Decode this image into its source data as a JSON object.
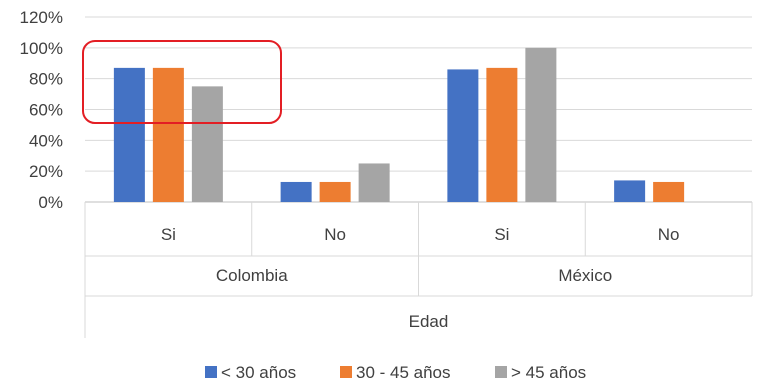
{
  "chart_data": {
    "type": "bar",
    "ylim": [
      0,
      120
    ],
    "y_ticks": [
      "0%",
      "20%",
      "40%",
      "60%",
      "80%",
      "100%",
      "120%"
    ],
    "groups": [
      {
        "label": "Colombia",
        "categories": [
          "Si",
          "No"
        ]
      },
      {
        "label": "México",
        "categories": [
          "Si",
          "No"
        ]
      }
    ],
    "axis_title": "Edad",
    "series": [
      {
        "name": "< 30 años",
        "color": "#4472C4",
        "values": [
          87,
          13,
          86,
          14
        ]
      },
      {
        "name": "30 - 45 años",
        "color": "#ED7D31",
        "values": [
          87,
          13,
          87,
          13
        ]
      },
      {
        "name": "> 45 años",
        "color": "#A5A5A5",
        "values": [
          75,
          25,
          100,
          0
        ]
      }
    ],
    "highlight": {
      "group": "Colombia",
      "category": "Si",
      "color": "#E31E24"
    },
    "gridlines": true,
    "legend_position": "bottom"
  }
}
